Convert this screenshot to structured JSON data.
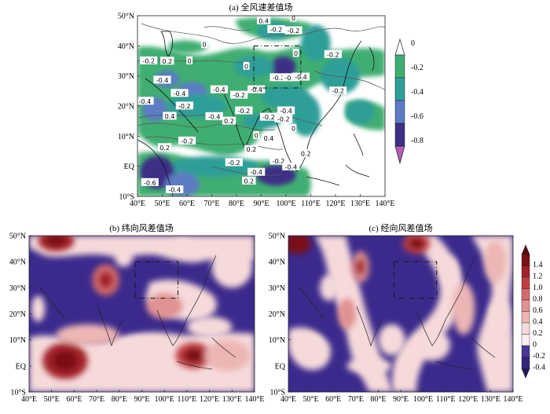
{
  "chart_data": [
    {
      "type": "heatmap",
      "title": "(a) 全风速差值场",
      "x_ticks": [
        "40°E",
        "50°E",
        "60°E",
        "70°E",
        "80°E",
        "90°E",
        "100°E",
        "110°E",
        "120°E",
        "130°E",
        "140°E"
      ],
      "y_ticks": [
        "50°N",
        "40°N",
        "30°N",
        "20°N",
        "10°N",
        "EQ",
        "10°S"
      ],
      "xlim": [
        40,
        140
      ],
      "ylim": [
        -10,
        50
      ],
      "colorbar": {
        "ticks": [
          "0",
          "-0.2",
          "-0.4",
          "-0.6",
          "-0.8"
        ],
        "levels": [
          0,
          -0.2,
          -0.4,
          -0.6,
          -0.8
        ],
        "colors": [
          "#ffffff",
          "#3fae72",
          "#2e9e99",
          "#5b7bc4",
          "#3d2f86"
        ]
      },
      "box": {
        "lon": [
          87,
          106
        ],
        "lat": [
          26,
          40
        ]
      },
      "contour_labels": [
        {
          "text": "-0.2",
          "lon": 44.5,
          "lat": 34.9
        },
        {
          "text": "0.2",
          "lon": 52,
          "lat": 34.8
        },
        {
          "text": "0",
          "lon": 61,
          "lat": 34.9
        },
        {
          "text": "-0.4",
          "lon": 50,
          "lat": 28.5
        },
        {
          "text": "-0.4",
          "lon": 57,
          "lat": 24.1
        },
        {
          "text": "-0.4",
          "lon": 73,
          "lat": 25.3
        },
        {
          "text": "-0.2",
          "lon": 81,
          "lat": 23.5
        },
        {
          "text": "-0.4",
          "lon": 88,
          "lat": 25.3
        },
        {
          "text": "0.4",
          "lon": 91,
          "lat": 48.2
        },
        {
          "text": "-0.2",
          "lon": 96,
          "lat": 45.3
        },
        {
          "text": "-0.2",
          "lon": 103,
          "lat": 44.9
        },
        {
          "text": "0",
          "lon": 103,
          "lat": 49.1
        },
        {
          "text": "-0.2",
          "lon": 119,
          "lat": 37
        },
        {
          "text": "-0.2",
          "lon": 97,
          "lat": 29.3
        },
        {
          "text": "-0.2",
          "lon": 102,
          "lat": 29.3
        },
        {
          "text": "-0.4",
          "lon": 106,
          "lat": 29.5
        },
        {
          "text": "0",
          "lon": 104,
          "lat": 37.4
        },
        {
          "text": "0",
          "lon": 84,
          "lat": 33.1
        },
        {
          "text": "0",
          "lon": 67,
          "lat": 40.3
        },
        {
          "text": "-0.2",
          "lon": 121,
          "lat": 24.9
        },
        {
          "text": "-0.4",
          "lon": 43,
          "lat": 21.5
        },
        {
          "text": "-0.2",
          "lon": 59,
          "lat": 19.9
        },
        {
          "text": "-0.4",
          "lon": 71,
          "lat": 16.4
        },
        {
          "text": "-0.2",
          "lon": 83,
          "lat": 18.3
        },
        {
          "text": "0.4",
          "lon": 53,
          "lat": 16.5
        },
        {
          "text": "0.2",
          "lon": 77,
          "lat": 14.9
        },
        {
          "text": "-0.2",
          "lon": 93,
          "lat": 16.2
        },
        {
          "text": "-0.4",
          "lon": 100,
          "lat": 18.3
        },
        {
          "text": "-0.2",
          "lon": 99,
          "lat": 15.6
        },
        {
          "text": "0",
          "lon": 88,
          "lat": 10.1
        },
        {
          "text": "0.4",
          "lon": 93,
          "lat": 9.2
        },
        {
          "text": "0",
          "lon": 103,
          "lat": 12.5
        },
        {
          "text": "0.2",
          "lon": 86,
          "lat": 5.5
        },
        {
          "text": "0.2",
          "lon": 51,
          "lat": 6.1
        },
        {
          "text": "-0.2",
          "lon": 60,
          "lat": 8.3
        },
        {
          "text": "-0.2",
          "lon": 79,
          "lat": 1.1
        },
        {
          "text": "-0.2",
          "lon": 97,
          "lat": 1.6
        },
        {
          "text": "-0.4",
          "lon": 102,
          "lat": -0.3
        },
        {
          "text": "-0.4",
          "lon": 88,
          "lat": -2.1
        },
        {
          "text": "0.2",
          "lon": 108,
          "lat": 4.1
        },
        {
          "text": "0.2",
          "lon": 85,
          "lat": -5
        },
        {
          "text": "-0.6",
          "lon": 45,
          "lat": -5.5
        },
        {
          "text": "-0.4",
          "lon": 55,
          "lat": -7.9
        }
      ],
      "blobs": [
        {
          "lon": 52,
          "lat": 29,
          "v": -0.55,
          "rx": 5,
          "ry": 2.8
        },
        {
          "lon": 62,
          "lat": 25,
          "v": -0.45,
          "rx": 6,
          "ry": 3
        },
        {
          "lon": 99,
          "lat": 33,
          "v": -0.65,
          "rx": 5,
          "ry": 3.5
        },
        {
          "lon": 87,
          "lat": 33,
          "v": -0.25,
          "rx": 8,
          "ry": 3.5
        },
        {
          "lon": 64,
          "lat": 20,
          "v": -0.3,
          "rx": 12,
          "ry": 4
        },
        {
          "lon": 47,
          "lat": 19,
          "v": -0.45,
          "rx": 5,
          "ry": 4
        },
        {
          "lon": 122,
          "lat": 30,
          "v": -0.25,
          "rx": 8,
          "ry": 6
        },
        {
          "lon": 100,
          "lat": 23,
          "v": -0.25,
          "rx": 10,
          "ry": 4
        },
        {
          "lon": 90,
          "lat": 15,
          "v": -0.3,
          "rx": 8,
          "ry": 2.6
        },
        {
          "lon": 71,
          "lat": 0,
          "v": -0.25,
          "rx": 18,
          "ry": 3.4
        },
        {
          "lon": 48,
          "lat": -2,
          "v": -0.75,
          "rx": 7,
          "ry": 5.5
        },
        {
          "lon": 58,
          "lat": -6,
          "v": -0.45,
          "rx": 7,
          "ry": 4
        },
        {
          "lon": 96,
          "lat": -3,
          "v": -0.65,
          "rx": 8,
          "ry": 3.4
        },
        {
          "lon": 108,
          "lat": 17,
          "v": -0.25,
          "rx": 6,
          "ry": 7
        },
        {
          "lon": 130,
          "lat": 18,
          "v": -0.3,
          "rx": 6,
          "ry": 4
        },
        {
          "lon": 112,
          "lat": 41,
          "v": -0.25,
          "rx": 6,
          "ry": 6
        },
        {
          "lon": 95,
          "lat": 45,
          "v": -0.25,
          "rx": 7,
          "ry": 3
        }
      ]
    },
    {
      "type": "heatmap",
      "title": "(b) 纬向风差值场",
      "x_ticks": [
        "40°E",
        "50°E",
        "60°E",
        "70°E",
        "80°E",
        "90°E",
        "100°E",
        "110°E",
        "120°E",
        "130°E",
        "140°E"
      ],
      "y_ticks": [
        "50°N",
        "40°N",
        "30°N",
        "20°N",
        "10°N",
        "EQ",
        "10°S"
      ],
      "xlim": [
        40,
        140
      ],
      "ylim": [
        -10,
        50
      ],
      "box": {
        "lon": [
          87,
          106
        ],
        "lat": [
          26,
          40
        ]
      },
      "blobs": [
        {
          "lon": 52,
          "lat": 48,
          "v": 1.2,
          "rx": 8,
          "ry": 4
        },
        {
          "lon": 74,
          "lat": 33,
          "v": 0.8,
          "rx": 6,
          "ry": 6
        },
        {
          "lon": 56,
          "lat": 2,
          "v": 1.2,
          "rx": 10,
          "ry": 7
        },
        {
          "lon": 113,
          "lat": 4,
          "v": 1.0,
          "rx": 8,
          "ry": 5
        },
        {
          "lon": 128,
          "lat": 4,
          "v": 0.4,
          "rx": 10,
          "ry": 6
        },
        {
          "lon": 100,
          "lat": 23,
          "v": 0.5,
          "rx": 8,
          "ry": 5
        },
        {
          "lon": 66,
          "lat": 12,
          "v": 0.4,
          "rx": 14,
          "ry": 4
        },
        {
          "lon": 130,
          "lat": 38,
          "v": 0.3,
          "rx": 9,
          "ry": 8
        },
        {
          "lon": 90,
          "lat": 8,
          "v": 0.3,
          "rx": 12,
          "ry": 3.5
        },
        {
          "lon": 108,
          "lat": 46,
          "v": 0.3,
          "rx": 5,
          "ry": 3
        },
        {
          "lon": 82,
          "lat": 42,
          "v": 0.3,
          "rx": 4,
          "ry": 4
        },
        {
          "lon": 44,
          "lat": 22,
          "v": 0.3,
          "rx": 3,
          "ry": 5
        },
        {
          "lon": 120,
          "lat": 15,
          "v": 0.2,
          "rx": 10,
          "ry": 4
        }
      ]
    },
    {
      "type": "heatmap",
      "title": "(c) 经向风差值场",
      "x_ticks": [
        "40°E",
        "50°E",
        "60°E",
        "70°E",
        "80°E",
        "90°E",
        "100°E",
        "110°E",
        "120°E",
        "130°E",
        "140°E"
      ],
      "y_ticks": [
        "50°N",
        "40°N",
        "30°N",
        "20°N",
        "10°N",
        "EQ",
        "10°S"
      ],
      "xlim": [
        40,
        140
      ],
      "ylim": [
        -10,
        50
      ],
      "colorbar": {
        "ticks": [
          "1.4",
          "1.2",
          "1.0",
          "0.8",
          "0.6",
          "0.4",
          "0.2",
          "0",
          "-0.2",
          "-0.4"
        ],
        "levels": [
          1.4,
          1.2,
          1.0,
          0.8,
          0.6,
          0.4,
          0.2,
          0,
          -0.2,
          -0.4
        ],
        "colors": [
          "#7a0f15",
          "#a3212a",
          "#c03e43",
          "#d46a6c",
          "#e19292",
          "#ecb6b4",
          "#f6dada",
          "#fbeeee",
          "#4a3697",
          "#35247d"
        ]
      },
      "box": {
        "lon": [
          87,
          106
        ],
        "lat": [
          26,
          40
        ]
      },
      "blobs": [
        {
          "lon": 44,
          "lat": 47,
          "v": 1.3,
          "rx": 6,
          "ry": 4
        },
        {
          "lon": 97,
          "lat": 47,
          "v": 0.9,
          "rx": 6,
          "ry": 4
        },
        {
          "lon": 72,
          "lat": 38,
          "v": 0.7,
          "rx": 4,
          "ry": 6
        },
        {
          "lon": 66,
          "lat": 20,
          "v": 0.5,
          "rx": 4,
          "ry": 6
        },
        {
          "lon": 118,
          "lat": 22,
          "v": 0.4,
          "rx": 5,
          "ry": 10
        },
        {
          "lon": 132,
          "lat": 40,
          "v": 0.4,
          "rx": 5,
          "ry": 8
        },
        {
          "lon": 104,
          "lat": 8,
          "v": 0.3,
          "rx": 8,
          "ry": 6
        },
        {
          "lon": 86,
          "lat": 10,
          "v": 0.3,
          "rx": 6,
          "ry": 6
        },
        {
          "lon": 58,
          "lat": 30,
          "v": 0.3,
          "rx": 4,
          "ry": 5
        },
        {
          "lon": 134,
          "lat": 18,
          "v": 0.3,
          "rx": 5,
          "ry": 8
        },
        {
          "lon": 112,
          "lat": 36,
          "v": 0.3,
          "rx": 4,
          "ry": 6
        },
        {
          "lon": 50,
          "lat": 8,
          "v": 0.3,
          "rx": 6,
          "ry": 4
        },
        {
          "lon": 76,
          "lat": 0,
          "v": 0.2,
          "rx": 10,
          "ry": 3
        }
      ]
    }
  ]
}
